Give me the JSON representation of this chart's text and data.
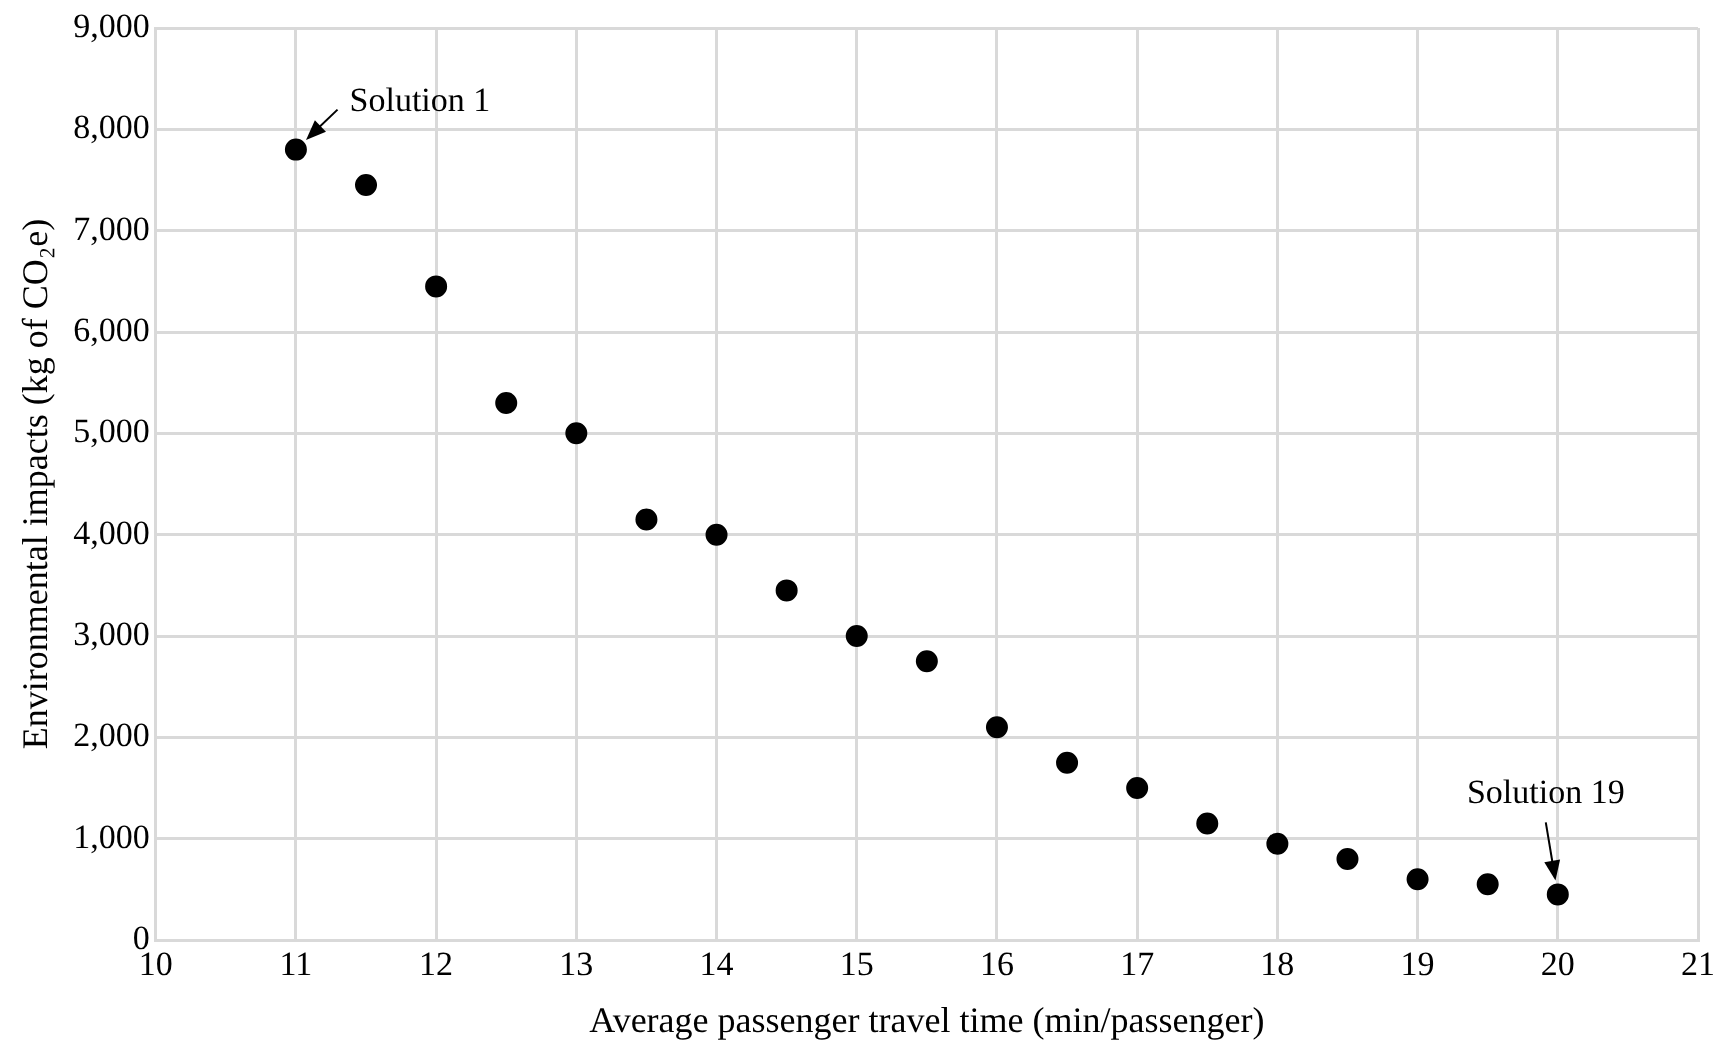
{
  "chart_data": {
    "type": "scatter",
    "xlabel": "Average passenger travel time (min/passenger)",
    "ylabel": "Environmental impacts (kg of CO₂e)",
    "x": [
      11,
      11.5,
      12,
      12.5,
      13,
      13.5,
      14,
      14.5,
      15,
      15.5,
      16,
      16.5,
      17,
      17.5,
      18,
      18.5,
      19,
      19.5,
      20
    ],
    "series": [
      {
        "color": "#000000",
        "values": [
          7800,
          7450,
          6450,
          5300,
          5000,
          4150,
          4000,
          3450,
          3000,
          2750,
          2100,
          1750,
          1500,
          1150,
          950,
          800,
          600,
          550,
          450
        ]
      }
    ],
    "xlim": [
      10,
      21
    ],
    "xticks": [
      10,
      11,
      12,
      13,
      14,
      15,
      16,
      17,
      18,
      19,
      20,
      21
    ],
    "ylim": [
      0,
      9000
    ],
    "yticks": [
      0,
      {
        "value": 1000,
        "label": "1,000"
      },
      {
        "value": 2000,
        "label": "2,000"
      },
      {
        "value": 3000,
        "label": "3,000"
      },
      {
        "value": 4000,
        "label": "4,000"
      },
      {
        "value": 5000,
        "label": "5,000"
      },
      {
        "value": 6000,
        "label": "6,000"
      },
      {
        "value": 7000,
        "label": "7,000"
      },
      {
        "value": 8000,
        "label": "8,000"
      },
      {
        "value": 9000,
        "label": "9,000"
      }
    ],
    "annotations": [
      {
        "text": "Solution 1",
        "x": 11,
        "y": 7800
      },
      {
        "text": "Solution 19",
        "x": 20,
        "y": 450
      }
    ],
    "grid": true,
    "legend": false,
    "marker": "circle"
  }
}
